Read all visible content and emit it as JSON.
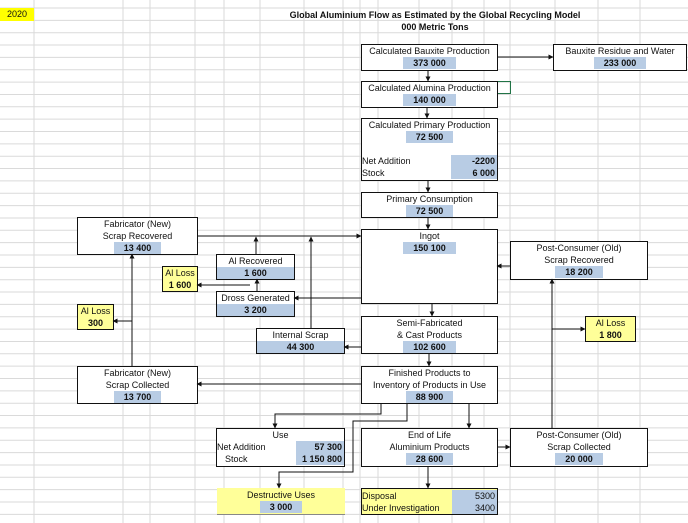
{
  "year": "2020",
  "title": "Global Aluminium Flow as Estimated by the Global Recycling Model",
  "subtitle": "000 Metric Tons",
  "colors": {
    "value_fill": "#b8cce4",
    "loss_fill": "#ffff99",
    "year_fill": "#ffff00"
  },
  "nodes": {
    "bauxite": {
      "label": "Calculated Bauxite Production",
      "value": "373 000"
    },
    "residue": {
      "label": "Bauxite Residue and Water",
      "value": "233 000"
    },
    "alumina": {
      "label": "Calculated Alumina Production",
      "value": "140 000"
    },
    "primary": {
      "label": "Calculated Primary Production",
      "value": "72 500",
      "net_label": "Net Addition",
      "net_value": "-2200",
      "stock_label": "Stock",
      "stock_value": "6 000"
    },
    "consumption": {
      "label": "Primary Consumption",
      "value": "72 500"
    },
    "ingot": {
      "label": "Ingot",
      "value": "150 100"
    },
    "fab_recovered": {
      "label1": "Fabricator (New)",
      "label2": "Scrap Recovered",
      "value": "13 400"
    },
    "al_recovered": {
      "label": "Al Recovered",
      "value": "1 600"
    },
    "al_loss_1": {
      "label": "Al Loss",
      "value": "1 600"
    },
    "dross": {
      "label": "Dross Generated",
      "value": "3 200"
    },
    "al_loss_2": {
      "label": "Al Loss",
      "value": "300"
    },
    "internal": {
      "label": "Internal Scrap",
      "value": "44 300"
    },
    "semi": {
      "label1": "Semi-Fabricated",
      "label2": "& Cast Products",
      "value": "102 600"
    },
    "old_recovered": {
      "label1": "Post-Consumer (Old)",
      "label2": "Scrap Recovered",
      "value": "18 200"
    },
    "al_loss_3": {
      "label": "Al Loss",
      "value": "1 800"
    },
    "fab_collected": {
      "label1": "Fabricator (New)",
      "label2": "Scrap Collected",
      "value": "13 700"
    },
    "finished": {
      "label1": "Finished Products to",
      "label2": "Inventory of Products in Use",
      "value": "88 900"
    },
    "use": {
      "label": "Use",
      "net_label": "Net Addition",
      "net_value": "57 300",
      "stock_label": "Stock",
      "stock_value": "1 150 800"
    },
    "eol": {
      "label1": "End of Life",
      "label2": "Aluminium Products",
      "value": "28 600"
    },
    "old_collected": {
      "label1": "Post-Consumer (Old)",
      "label2": "Scrap Collected",
      "value": "20 000"
    },
    "destructive": {
      "label": "Destructive Uses",
      "value": "3 000"
    },
    "disposal": {
      "disposal_label": "Disposal",
      "disposal_value": "5300",
      "inv_label": "Under Investigation",
      "inv_value": "3400"
    }
  }
}
